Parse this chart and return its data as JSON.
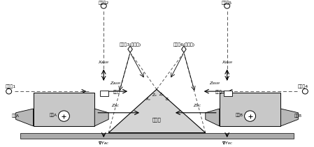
{
  "bg_color": "#ffffff",
  "box_fill": "#c8c8c8",
  "box_fill2": "#b8b8b8",
  "line_color": "#000000",
  "dashed_color": "#555555",
  "mirror_fill": "#d5d5d5",
  "ground_fill": "#aaaaaa",
  "fiducial_fill": "#ffffff",
  "label_jingwei1": "经纬仪1",
  "label_jingwei2": "经纬仪2",
  "label_jingwei3": "经纬仪3(全站仪)",
  "label_jingwei4": "经纬仪4",
  "label_jingwei5": "经纬仪5",
  "label_jingwei6": "经纬仪6(全站仪)",
  "label_cameraA": "相机A",
  "label_cameraB": "相机B",
  "label_mainA": "主点A",
  "label_mainB": "主点B",
  "label_mirror": "反射镜",
  "label_jizhun": "基准镜"
}
